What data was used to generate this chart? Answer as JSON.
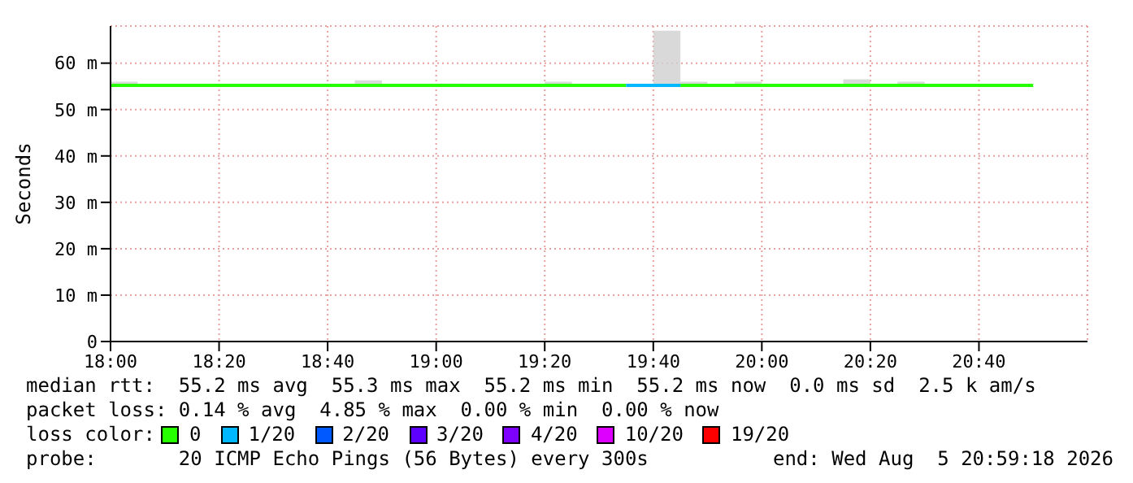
{
  "chart_data": {
    "type": "step",
    "ylabel": "Seconds",
    "xlim": [
      18,
      21
    ],
    "xticks": [
      {
        "value": 18,
        "label": "18:00"
      },
      {
        "value": 18.3333,
        "label": "18:20"
      },
      {
        "value": 18.6667,
        "label": "18:40"
      },
      {
        "value": 19,
        "label": "19:00"
      },
      {
        "value": 19.3333,
        "label": "19:20"
      },
      {
        "value": 19.6667,
        "label": "19:40"
      },
      {
        "value": 20,
        "label": "20:00"
      },
      {
        "value": 20.3333,
        "label": "20:20"
      },
      {
        "value": 20.6667,
        "label": "20:40"
      }
    ],
    "ylim": [
      0,
      68
    ],
    "yticks": [
      0,
      {
        "value": 10,
        "label": "10 m"
      },
      {
        "value": 20,
        "label": "20 m"
      },
      {
        "value": 30,
        "label": "30 m"
      },
      {
        "value": 40,
        "label": "40 m"
      },
      {
        "value": 50,
        "label": "50 m"
      },
      {
        "value": 60,
        "label": "60 m"
      }
    ],
    "grid": true,
    "legend": "bottom",
    "legend_title": "loss color:",
    "series": [
      {
        "name": "0",
        "color": "#26ff00",
        "x": [
          18,
          18.0833,
          18.1667,
          18.25,
          18.3333,
          18.4167,
          18.5,
          18.5833,
          18.6667,
          18.75,
          18.8333,
          18.9167,
          19,
          19.0833,
          19.1667,
          19.25,
          19.3333,
          19.4167,
          19.5,
          19.5833,
          19.6667,
          19.75,
          19.8333,
          19.9167,
          20,
          20.0833,
          20.1667,
          20.25,
          20.3333,
          20.4167,
          20.5,
          20.5833,
          20.6667,
          20.75,
          20.8333
        ],
        "values": [
          55.2,
          55.2,
          55.2,
          55.2,
          55.2,
          55.2,
          55.2,
          55.2,
          55.2,
          55.2,
          55.2,
          55.2,
          55.2,
          55.2,
          55.2,
          55.2,
          55.2,
          55.2,
          55.2,
          55.2,
          null,
          55.2,
          55.2,
          55.2,
          55.2,
          55.2,
          55.2,
          55.2,
          55.2,
          55.2,
          55.2,
          55.2,
          55.2,
          55.2,
          55.2
        ],
        "lower": [
          55.2,
          55.2,
          55.2,
          55.2,
          55.2,
          55.2,
          55.2,
          55.2,
          55.2,
          55.2,
          55.2,
          55.2,
          55.2,
          55.2,
          55.2,
          55.2,
          55.2,
          55.2,
          55.2,
          55.2,
          55.2,
          55.2,
          55.2,
          55.2,
          55.2,
          55.2,
          55.2,
          55.2,
          55.2,
          55.2,
          55.2,
          55.2,
          55.2,
          55.2,
          55.2
        ],
        "upper": [
          56,
          55.2,
          55.2,
          55.2,
          55.2,
          55.2,
          55.2,
          55.2,
          55.2,
          56.3,
          55.2,
          55.2,
          55.6,
          55.2,
          55.2,
          55.2,
          56,
          55.2,
          55.2,
          55.2,
          67,
          56,
          55.2,
          56,
          55.2,
          55.2,
          55.2,
          56.5,
          55.2,
          56,
          55.2,
          55.2,
          55.2,
          55.2,
          55.2
        ]
      },
      {
        "name": "1/20",
        "color": "#00b8ff",
        "x": [
          19.5833,
          19.6667,
          19.75
        ],
        "values": [
          55.2,
          55.2,
          55.2
        ]
      },
      {
        "name": "2/20",
        "color": "#0059ff"
      },
      {
        "name": "3/20",
        "color": "#5e00ff"
      },
      {
        "name": "4/20",
        "color": "#7e00ff"
      },
      {
        "name": "10/20",
        "color": "#dd00ff"
      },
      {
        "name": "19/20",
        "color": "#ff0000"
      }
    ],
    "annotations": [
      "median rtt:  55.2 ms avg  55.3 ms max  55.2 ms min  55.2 ms now  0.0 ms sd  2.5 k am/s",
      "packet loss: 0.14 % avg  4.85 % max  0.00 % min  0.00 % now",
      "probe:       20 ICMP Echo Pings (56 Bytes) every 300s",
      "end: Wed Aug  5 20:59:18 2026"
    ]
  }
}
